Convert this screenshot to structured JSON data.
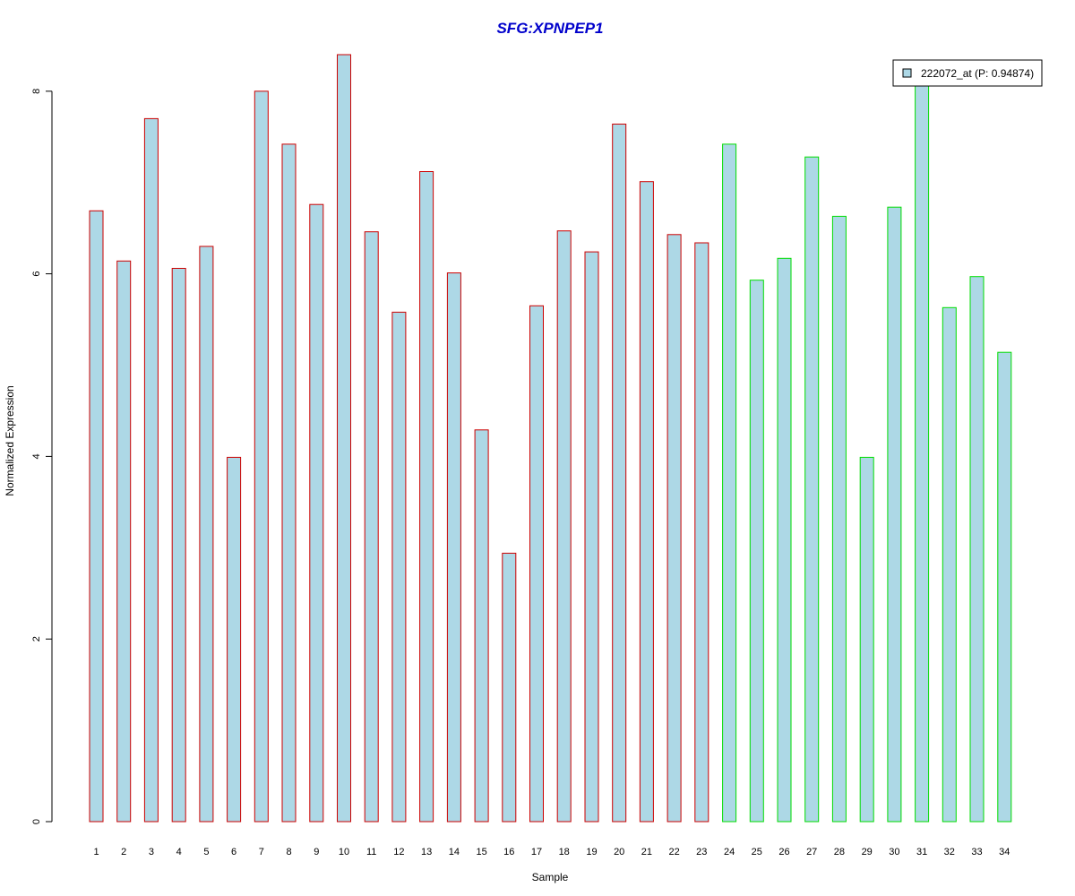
{
  "chart_data": {
    "type": "bar",
    "title": "SFG:XPNPEP1",
    "xlabel": "Sample",
    "ylabel": "Normalized Expression",
    "ylim": [
      0,
      8.4
    ],
    "yticks": [
      0,
      2,
      4,
      6,
      8
    ],
    "grid": false,
    "legend_position": "top-right",
    "legend": [
      {
        "label": "222072_at (P: 0.94874)",
        "fill": "#add8e6"
      }
    ],
    "bar_fill": "#add8e6",
    "title_color": "#0000cc",
    "categories": [
      "1",
      "2",
      "3",
      "4",
      "5",
      "6",
      "7",
      "8",
      "9",
      "10",
      "11",
      "12",
      "13",
      "14",
      "15",
      "16",
      "17",
      "18",
      "19",
      "20",
      "21",
      "22",
      "23",
      "24",
      "25",
      "26",
      "27",
      "28",
      "29",
      "30",
      "31",
      "32",
      "33",
      "34"
    ],
    "series": [
      {
        "name": "222072_at (P: 0.94874)",
        "values": [
          6.69,
          6.14,
          7.7,
          6.06,
          6.3,
          3.99,
          8.0,
          7.42,
          6.76,
          8.4,
          6.46,
          5.58,
          7.12,
          6.01,
          4.29,
          2.94,
          5.65,
          6.47,
          6.24,
          7.64,
          7.01,
          6.43,
          6.34,
          7.42,
          5.93,
          6.17,
          7.28,
          6.63,
          3.99,
          6.73,
          8.1,
          5.63,
          5.97,
          5.14
        ]
      }
    ],
    "groups": [
      {
        "from": 1,
        "to": 23,
        "border_color": "#cc0000"
      },
      {
        "from": 24,
        "to": 34,
        "border_color": "#00dd00"
      }
    ]
  }
}
